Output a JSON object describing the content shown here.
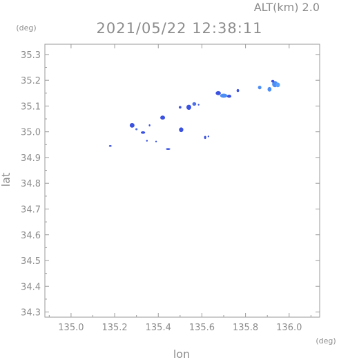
{
  "header": {
    "altitude_label": "ALT(km) 2.0",
    "timestamp": "2021/05/22 12:38:11"
  },
  "colors": {
    "axis": "#9a9a9a",
    "text": "#8c8c8c",
    "echo_core": "#4d8ef5",
    "echo_edge": "#3b52e0"
  },
  "chart_data": {
    "type": "scatter",
    "xlabel": "lon",
    "ylabel": "lat",
    "x_unit": "(deg)",
    "y_unit": "(deg)",
    "xlim": [
      134.88,
      136.14
    ],
    "ylim": [
      34.28,
      35.34
    ],
    "x_ticks": [
      135.0,
      135.2,
      135.4,
      135.6,
      135.8,
      136.0
    ],
    "y_ticks": [
      34.3,
      34.4,
      34.5,
      34.6,
      34.7,
      34.8,
      34.9,
      35.0,
      35.1,
      35.2,
      35.3
    ],
    "x_tick_labels": [
      "135.0",
      "135.2",
      "135.4",
      "135.6",
      "135.8",
      "136.0"
    ],
    "y_tick_labels": [
      "34.3",
      "34.4",
      "34.5",
      "34.6",
      "34.7",
      "34.8",
      "34.9",
      "35.0",
      "35.1",
      "35.2",
      "35.3"
    ],
    "grid": false,
    "echoes": [
      {
        "lon": 135.18,
        "lat": 34.945,
        "w": 0.012,
        "h": 0.006,
        "c": "#3b52e0"
      },
      {
        "lon": 135.28,
        "lat": 35.025,
        "w": 0.022,
        "h": 0.018,
        "c": "#3b52e0"
      },
      {
        "lon": 135.3,
        "lat": 35.01,
        "w": 0.01,
        "h": 0.008,
        "c": "#4d6fe8"
      },
      {
        "lon": 135.33,
        "lat": 34.997,
        "w": 0.02,
        "h": 0.01,
        "c": "#3b52e0"
      },
      {
        "lon": 135.36,
        "lat": 35.025,
        "w": 0.006,
        "h": 0.008,
        "c": "#3b52e0"
      },
      {
        "lon": 135.348,
        "lat": 34.965,
        "w": 0.006,
        "h": 0.005,
        "c": "#3b52e0"
      },
      {
        "lon": 135.39,
        "lat": 34.962,
        "w": 0.006,
        "h": 0.005,
        "c": "#3b52e0"
      },
      {
        "lon": 135.42,
        "lat": 35.055,
        "w": 0.022,
        "h": 0.016,
        "c": "#3b52e0"
      },
      {
        "lon": 135.445,
        "lat": 34.933,
        "w": 0.02,
        "h": 0.007,
        "c": "#3b52e0"
      },
      {
        "lon": 135.505,
        "lat": 35.008,
        "w": 0.02,
        "h": 0.018,
        "c": "#3b52e0"
      },
      {
        "lon": 135.5,
        "lat": 35.095,
        "w": 0.012,
        "h": 0.01,
        "c": "#3b52e0"
      },
      {
        "lon": 135.54,
        "lat": 35.095,
        "w": 0.022,
        "h": 0.02,
        "c": "#3b52e0"
      },
      {
        "lon": 135.565,
        "lat": 35.108,
        "w": 0.018,
        "h": 0.014,
        "c": "#4d6fe8"
      },
      {
        "lon": 135.585,
        "lat": 35.105,
        "w": 0.006,
        "h": 0.006,
        "c": "#3b52e0"
      },
      {
        "lon": 135.615,
        "lat": 34.978,
        "w": 0.01,
        "h": 0.012,
        "c": "#3b52e0"
      },
      {
        "lon": 135.63,
        "lat": 34.982,
        "w": 0.005,
        "h": 0.005,
        "c": "#3b52e0"
      },
      {
        "lon": 135.675,
        "lat": 35.15,
        "w": 0.024,
        "h": 0.016,
        "c": "#3b52e0"
      },
      {
        "lon": 135.7,
        "lat": 35.14,
        "w": 0.034,
        "h": 0.016,
        "c": "#4d8ef5"
      },
      {
        "lon": 135.725,
        "lat": 35.138,
        "w": 0.02,
        "h": 0.012,
        "c": "#3b52e0"
      },
      {
        "lon": 135.765,
        "lat": 35.16,
        "w": 0.012,
        "h": 0.012,
        "c": "#3b52e0"
      },
      {
        "lon": 135.865,
        "lat": 35.172,
        "w": 0.016,
        "h": 0.014,
        "c": "#4d8ef5"
      },
      {
        "lon": 135.91,
        "lat": 35.165,
        "w": 0.018,
        "h": 0.018,
        "c": "#4d8ef5"
      },
      {
        "lon": 135.935,
        "lat": 35.185,
        "w": 0.026,
        "h": 0.024,
        "c": "#4d8ef5"
      },
      {
        "lon": 135.948,
        "lat": 35.182,
        "w": 0.02,
        "h": 0.018,
        "c": "#5aa0ff"
      },
      {
        "lon": 135.925,
        "lat": 35.196,
        "w": 0.014,
        "h": 0.01,
        "c": "#3b52e0"
      }
    ]
  }
}
